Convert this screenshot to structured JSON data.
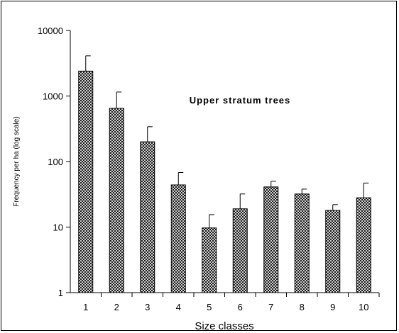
{
  "chart_data": {
    "type": "bar",
    "title": "",
    "annotation": "Upper stratum trees",
    "xlabel": "Size classes",
    "ylabel": "Frequency per ha (log scale)",
    "yscale": "log",
    "ylim": [
      1,
      10000
    ],
    "yticks": [
      "1",
      "10",
      "100",
      "1000",
      "10000"
    ],
    "categories": [
      "1",
      "2",
      "3",
      "4",
      "5",
      "6",
      "7",
      "8",
      "9",
      "10"
    ],
    "values": [
      2400,
      650,
      200,
      44,
      9.7,
      19,
      41,
      32,
      18,
      28
    ],
    "error_upper": [
      4100,
      1150,
      340,
      68,
      15.5,
      32,
      50,
      38,
      22,
      47
    ],
    "grid": false,
    "legend": "none",
    "bar_fill": "crosshatch"
  }
}
